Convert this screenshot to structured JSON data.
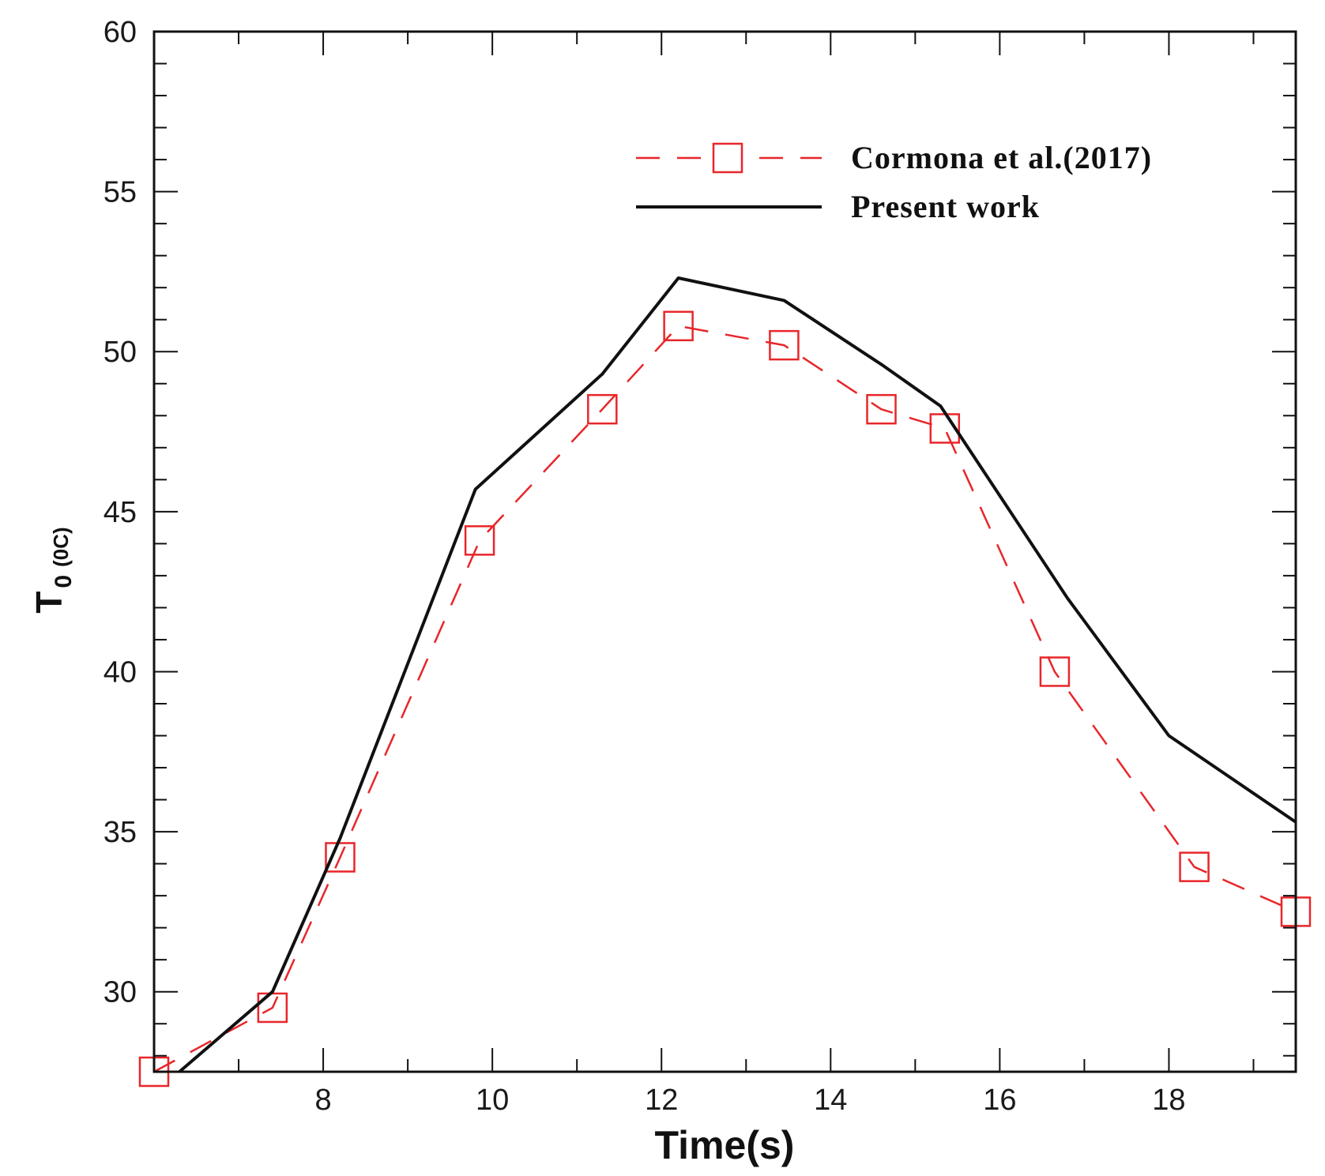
{
  "chart_data": {
    "type": "line",
    "title": "",
    "xlabel": "Time(s)",
    "ylabel": {
      "main": "T",
      "subscript": "0",
      "unit": "(0C)"
    },
    "xlim": [
      6.0,
      19.5
    ],
    "ylim": [
      27.5,
      60
    ],
    "x_ticks": [
      8,
      10,
      12,
      14,
      16,
      18
    ],
    "y_ticks": [
      30,
      35,
      40,
      45,
      50,
      55,
      60
    ],
    "grid": false,
    "legend_position": "top-right",
    "series": [
      {
        "name": "Cormona et al.(2017)",
        "style": "dashed",
        "marker": "square",
        "color": "#e8262a",
        "x": [
          6.0,
          7.4,
          8.2,
          9.85,
          11.3,
          12.2,
          13.45,
          14.6,
          15.35,
          16.65,
          18.3,
          19.5
        ],
        "y": [
          27.5,
          29.5,
          34.2,
          44.1,
          48.2,
          50.8,
          50.2,
          48.2,
          47.6,
          40.0,
          33.9,
          32.5
        ]
      },
      {
        "name": "Present work",
        "style": "solid",
        "marker": "none",
        "color": "#111111",
        "x": [
          6.3,
          7.4,
          8.2,
          9.8,
          11.3,
          12.2,
          13.45,
          14.6,
          15.3,
          16.8,
          18.0,
          19.5
        ],
        "y": [
          27.5,
          30.0,
          34.8,
          45.7,
          49.3,
          52.3,
          51.6,
          49.6,
          48.3,
          42.3,
          38.0,
          35.3
        ]
      }
    ]
  }
}
